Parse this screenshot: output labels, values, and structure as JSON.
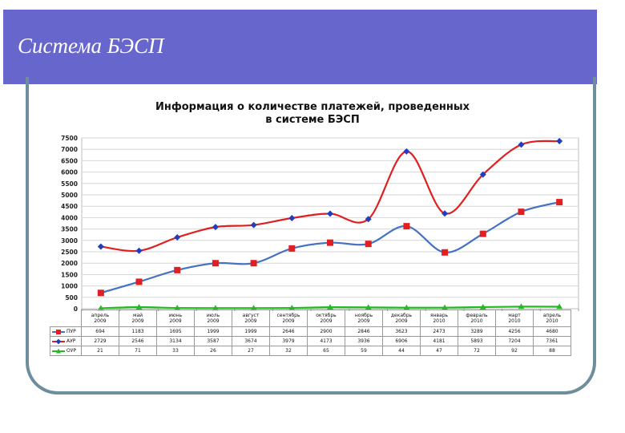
{
  "slide": {
    "title": "Система БЭСП",
    "accent": "#6666cc",
    "frame_color": "#6e8e9e"
  },
  "chart_data": {
    "type": "line",
    "title": "Информация о количестве платежей, проведенных в системе БЭСП",
    "title_lines": [
      "Информация о количестве платежей, проведенных",
      "в системе БЭСП"
    ],
    "categories": [
      [
        "апрель",
        "2009"
      ],
      [
        "май",
        "2009"
      ],
      [
        "июнь",
        "2009"
      ],
      [
        "июль",
        "2009"
      ],
      [
        "август",
        "2009"
      ],
      [
        "сентябрь",
        "2009"
      ],
      [
        "октябрь",
        "2009"
      ],
      [
        "ноябрь",
        "2009"
      ],
      [
        "декабрь",
        "2009"
      ],
      [
        "январь",
        "2010"
      ],
      [
        "февраль",
        "2010"
      ],
      [
        "март",
        "2010"
      ],
      [
        "апрель",
        "2010"
      ]
    ],
    "ylim": [
      0,
      7500
    ],
    "yticks": [
      0,
      500,
      1000,
      1500,
      2000,
      2500,
      3000,
      3500,
      4000,
      4500,
      5000,
      5500,
      6000,
      6500,
      7000,
      7500
    ],
    "grid": true,
    "legend": "table-below",
    "series": [
      {
        "name": "ПУР",
        "line_color": "#4472c4",
        "marker_color": "#e02020",
        "marker": "square",
        "values": [
          694,
          1183,
          1695,
          1999,
          1999,
          2646,
          2900,
          2846,
          3623,
          2473,
          3289,
          4256,
          4680
        ]
      },
      {
        "name": "АУР",
        "line_color": "#e02020",
        "marker_color": "#1f3fbf",
        "marker": "diamond",
        "values": [
          2729,
          2546,
          3134,
          3587,
          3674,
          3979,
          4173,
          3936,
          6906,
          4181,
          5893,
          7204,
          7361
        ]
      },
      {
        "name": "ОУР",
        "line_color": "#22bb22",
        "marker_color": "#22bb22",
        "marker": "triangle",
        "values": [
          21,
          71,
          33,
          26,
          27,
          32,
          65,
          59,
          44,
          47,
          72,
          92,
          88
        ]
      }
    ]
  }
}
